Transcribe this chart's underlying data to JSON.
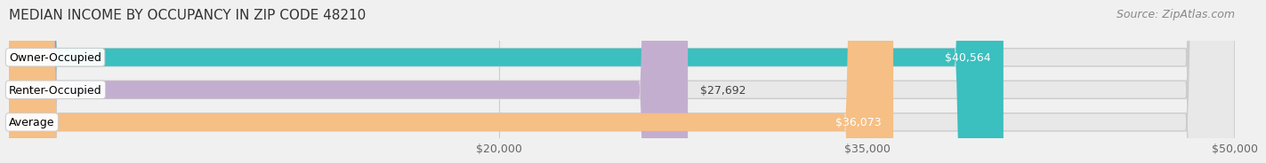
{
  "title": "MEDIAN INCOME BY OCCUPANCY IN ZIP CODE 48210",
  "source": "Source: ZipAtlas.com",
  "categories": [
    "Owner-Occupied",
    "Renter-Occupied",
    "Average"
  ],
  "values": [
    40564,
    27692,
    36073
  ],
  "bar_colors": [
    "#3bbfbf",
    "#c4aed0",
    "#f5bf85"
  ],
  "bar_edge_colors": [
    "#3bbfbf",
    "#c4aed0",
    "#f5bf85"
  ],
  "value_labels": [
    "$40,564",
    "$27,692",
    "$36,073"
  ],
  "xlim": [
    0,
    50000
  ],
  "xticks": [
    20000,
    35000,
    50000
  ],
  "xtick_labels": [
    "$20,000",
    "$35,000",
    "$50,000"
  ],
  "background_color": "#f0f0f0",
  "bar_background_color": "#e8e8e8",
  "title_fontsize": 11,
  "source_fontsize": 9,
  "label_fontsize": 9,
  "value_fontsize": 9,
  "tick_fontsize": 9,
  "bar_height": 0.55
}
